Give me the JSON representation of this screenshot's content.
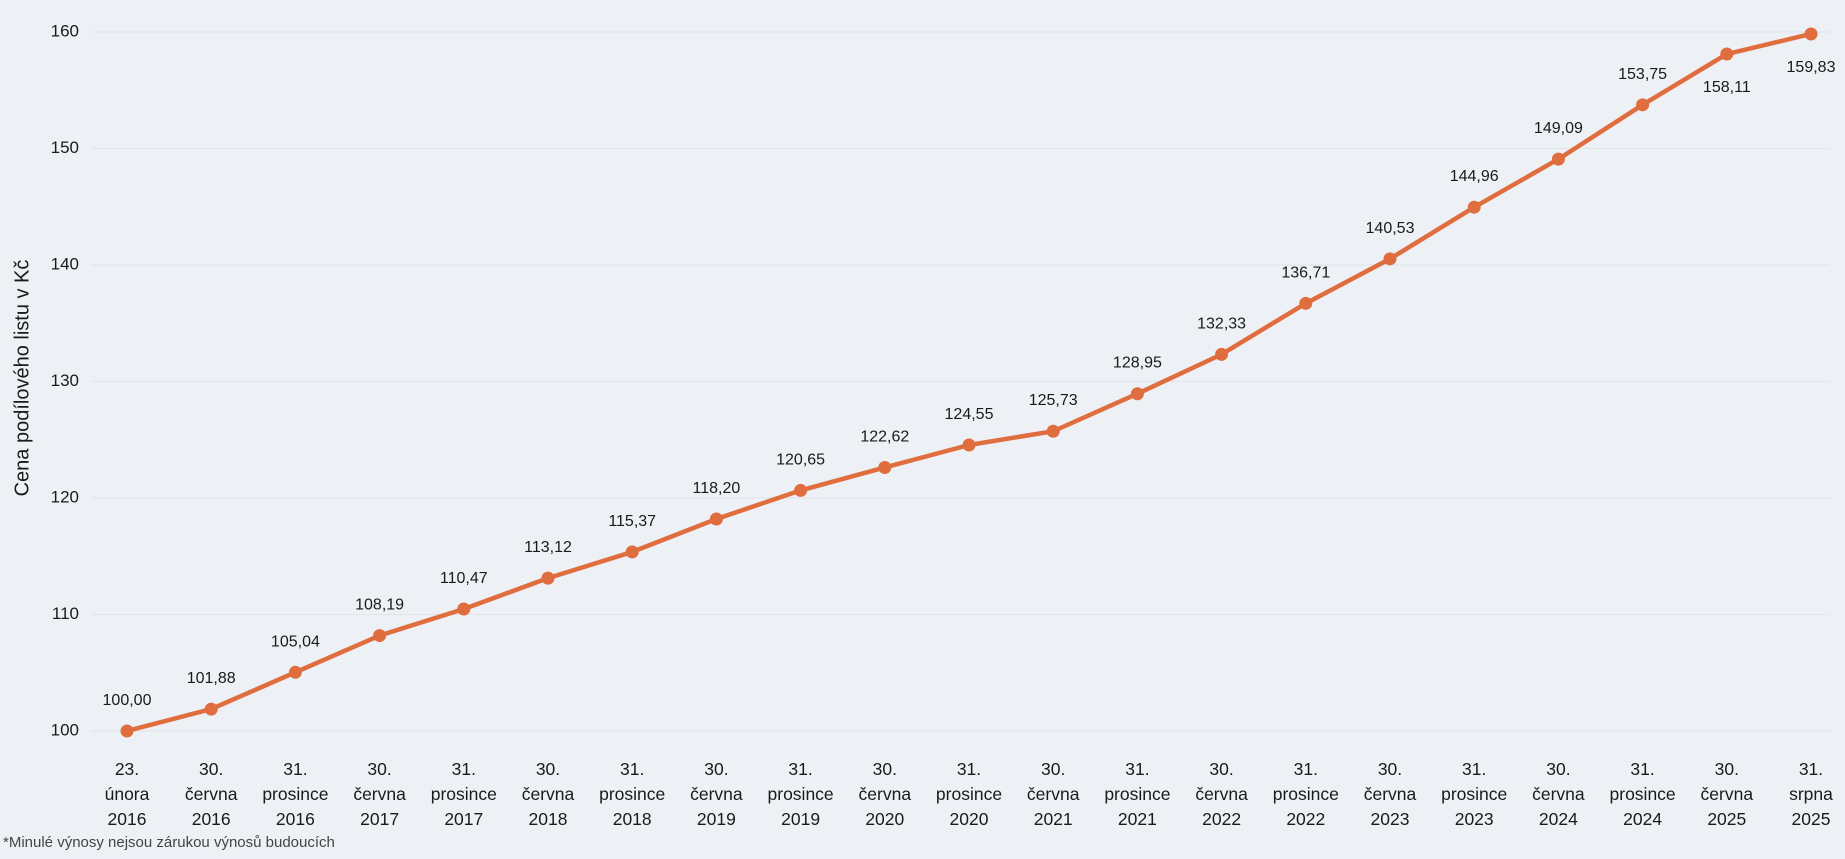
{
  "chart_data": {
    "type": "line",
    "title": "",
    "xlabel": "",
    "ylabel": "Cena podílového listu v Kč",
    "ylim": [
      100,
      160
    ],
    "yticks": [
      "100",
      "110",
      "120",
      "130",
      "140",
      "150",
      "160"
    ],
    "grid": true,
    "legend": "none",
    "categories": [
      [
        "23.",
        "února",
        "2016"
      ],
      [
        "30.",
        "června",
        "2016"
      ],
      [
        "31.",
        "prosince",
        "2016"
      ],
      [
        "30.",
        "června",
        "2017"
      ],
      [
        "31.",
        "prosince",
        "2017"
      ],
      [
        "30.",
        "června",
        "2018"
      ],
      [
        "31.",
        "prosince",
        "2018"
      ],
      [
        "30.",
        "června",
        "2019"
      ],
      [
        "31.",
        "prosince",
        "2019"
      ],
      [
        "30.",
        "června",
        "2020"
      ],
      [
        "31.",
        "prosince",
        "2020"
      ],
      [
        "30.",
        "června",
        "2021"
      ],
      [
        "31.",
        "prosince",
        "2021"
      ],
      [
        "30.",
        "června",
        "2022"
      ],
      [
        "31.",
        "prosince",
        "2022"
      ],
      [
        "30.",
        "června",
        "2023"
      ],
      [
        "31.",
        "prosince",
        "2023"
      ],
      [
        "30.",
        "června",
        "2024"
      ],
      [
        "31.",
        "prosince",
        "2024"
      ],
      [
        "30.",
        "června",
        "2025"
      ],
      [
        "31.",
        "srpna",
        "2025"
      ]
    ],
    "values": [
      100.0,
      101.88,
      105.04,
      108.19,
      110.47,
      113.12,
      115.37,
      118.2,
      120.65,
      122.62,
      124.55,
      125.73,
      128.95,
      132.33,
      136.71,
      140.53,
      144.96,
      149.09,
      153.75,
      158.11,
      159.83
    ],
    "value_labels": [
      "100,00",
      "101,88",
      "105,04",
      "108,19",
      "110,47",
      "113,12",
      "115,37",
      "118,20",
      "120,65",
      "122,62",
      "124,55",
      "125,73",
      "128,95",
      "132,33",
      "136,71",
      "140,53",
      "144,96",
      "149,09",
      "153,75",
      "158,11",
      "159,83"
    ],
    "label_below": [
      19,
      20
    ],
    "colors": {
      "line": "#e06d3e",
      "grid": "#e2e5ea",
      "text": "#1a1a1a",
      "background": "#edf0f5"
    }
  },
  "footnote": "*Minulé výnosy nejsou zárukou výnosů budoucích"
}
